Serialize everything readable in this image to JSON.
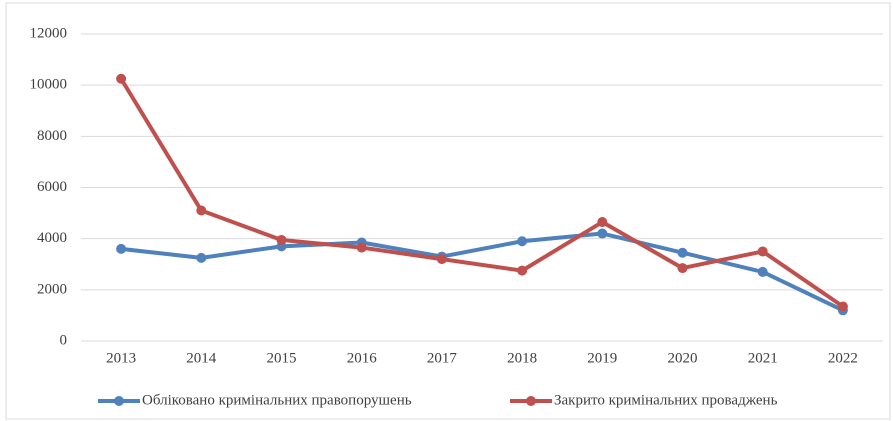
{
  "chart_data": {
    "type": "line",
    "categories": [
      "2013",
      "2014",
      "2015",
      "2016",
      "2017",
      "2018",
      "2019",
      "2020",
      "2021",
      "2022"
    ],
    "series": [
      {
        "name": "Обліковано кримінальних правопорушень",
        "color": "#4f81bd",
        "values": [
          3600,
          3250,
          3700,
          3850,
          3300,
          3900,
          4200,
          3450,
          2700,
          1200
        ]
      },
      {
        "name": "Закрито кримінальних проваджень",
        "color": "#c0504d",
        "values": [
          10250,
          5100,
          3950,
          3650,
          3200,
          2750,
          4650,
          2850,
          3500,
          1350
        ]
      }
    ],
    "ylim": [
      0,
      12000
    ],
    "yticks": [
      0,
      2000,
      4000,
      6000,
      8000,
      10000,
      12000
    ],
    "grid": true,
    "legend": "bottom"
  }
}
